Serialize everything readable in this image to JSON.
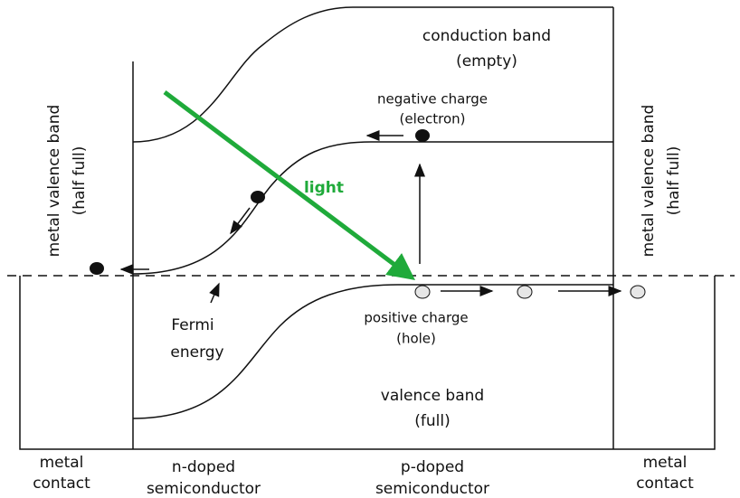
{
  "labels": {
    "conduction_band": [
      "conduction band",
      "(empty)"
    ],
    "negative_charge": [
      "negative charge",
      "(electron)"
    ],
    "light": "light",
    "left_metal_band": [
      "metal valence band",
      "(half full)"
    ],
    "right_metal_band": [
      "metal valence band",
      "(half full)"
    ],
    "fermi": [
      "Fermi",
      "energy"
    ],
    "positive_charge": [
      "positive charge",
      "(hole)"
    ],
    "valence_band": [
      "valence band",
      "(full)"
    ],
    "left_contact": [
      "metal",
      "contact"
    ],
    "n_doped": [
      "n-doped",
      "semiconductor"
    ],
    "p_doped": [
      "p-doped",
      "semiconductor"
    ],
    "right_contact": [
      "metal",
      "contact"
    ]
  }
}
